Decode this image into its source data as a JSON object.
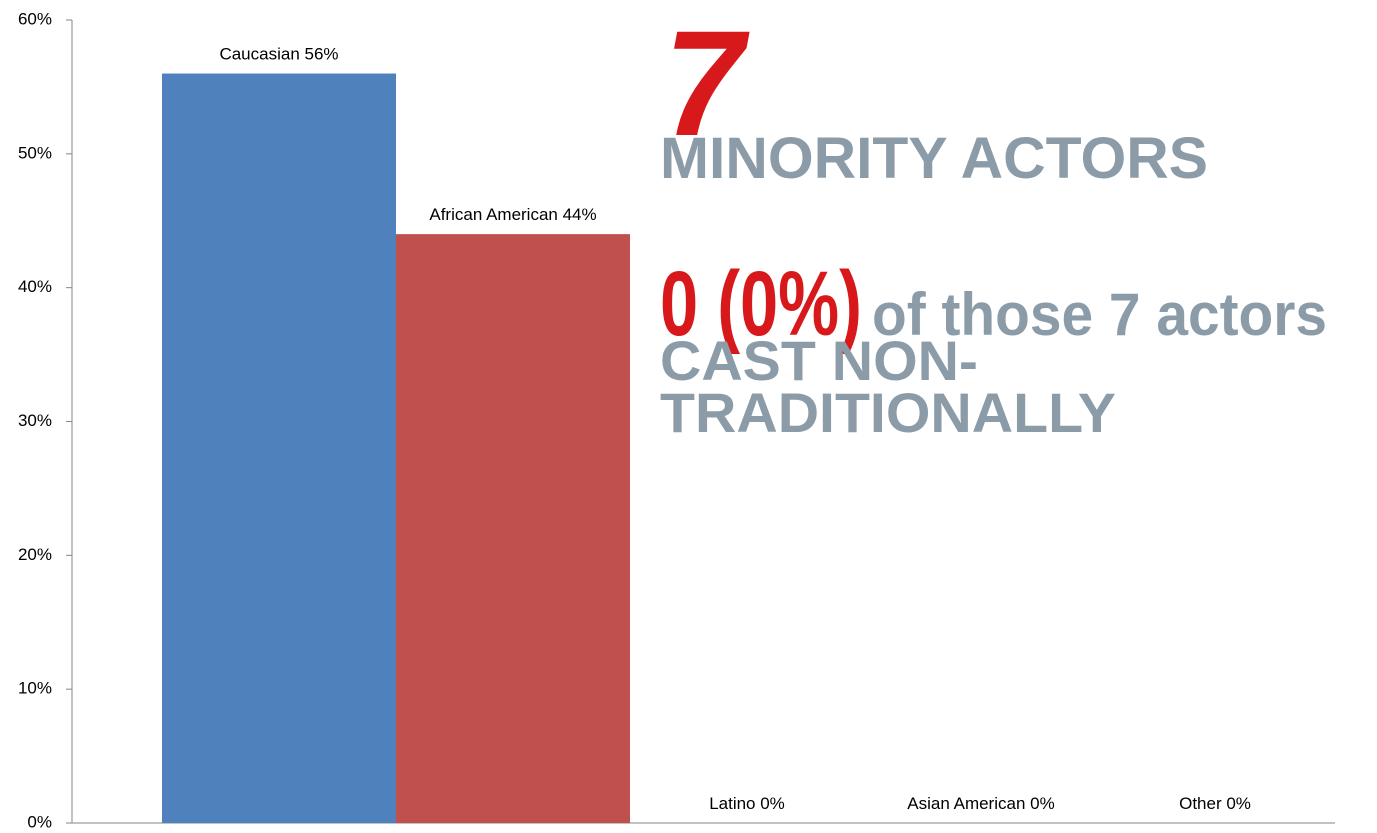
{
  "chart_data": {
    "type": "bar",
    "values": [
      56,
      44,
      0,
      0,
      0
    ],
    "value_labels": [
      "Caucasian 56%",
      "African American 44%",
      "Latino 0%",
      "Asian American 0%",
      "Other 0%"
    ],
    "colors": [
      "#4f81bd",
      "#c0504d",
      "#9bbb59",
      "#8064a2",
      "#4bacc6"
    ],
    "ylim": [
      0,
      60
    ],
    "yticks": [
      {
        "value": 0,
        "label": "0%"
      },
      {
        "value": 10,
        "label": "10%"
      },
      {
        "value": 20,
        "label": "20%"
      },
      {
        "value": 30,
        "label": "30%"
      },
      {
        "value": 40,
        "label": "40%"
      },
      {
        "value": 50,
        "label": "50%"
      },
      {
        "value": 60,
        "label": "60%"
      }
    ],
    "annotations": {
      "count": "7",
      "count_caption": "MINORITY ACTORS",
      "zero": "0 (0%)",
      "zero_caption": "of those 7 actors",
      "cast_caption": [
        "CAST NON-",
        "TRADITIONALLY"
      ]
    }
  }
}
